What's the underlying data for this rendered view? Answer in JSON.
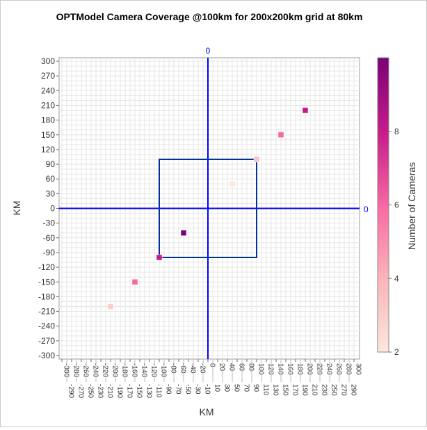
{
  "chart_data": {
    "type": "heatmap",
    "title": "OPTModel Camera Coverage @100km for 200x200km grid at 80km",
    "xlabel": "KM",
    "ylabel": "KM",
    "xlim": [
      -300,
      300
    ],
    "ylim": [
      -300,
      300
    ],
    "x_tick_step": 10,
    "y_tick_step": 30,
    "grid": true,
    "refline_label_x": "0",
    "refline_label_y": "0",
    "refline_color": "#0000FF",
    "box": {
      "x": [
        -100,
        100
      ],
      "y": [
        -100,
        100
      ],
      "color": "#003399"
    },
    "points": [
      {
        "x": -200,
        "y": -200,
        "cameras": 3
      },
      {
        "x": -150,
        "y": -150,
        "cameras": 6
      },
      {
        "x": -100,
        "y": -100,
        "cameras": 8
      },
      {
        "x": -50,
        "y": -50,
        "cameras": 10
      },
      {
        "x": 50,
        "y": 50,
        "cameras": 2
      },
      {
        "x": 100,
        "y": 100,
        "cameras": 3.5
      },
      {
        "x": 150,
        "y": 150,
        "cameras": 6
      },
      {
        "x": 200,
        "y": 200,
        "cameras": 8
      }
    ],
    "colorbar": {
      "label": "Number of Cameras",
      "range": [
        2,
        10
      ],
      "ticks": [
        2,
        4,
        6,
        8
      ],
      "colors": [
        "#FDE7DC",
        "#FBB4B9",
        "#F768A1",
        "#C51B8A",
        "#7A0177"
      ]
    }
  }
}
